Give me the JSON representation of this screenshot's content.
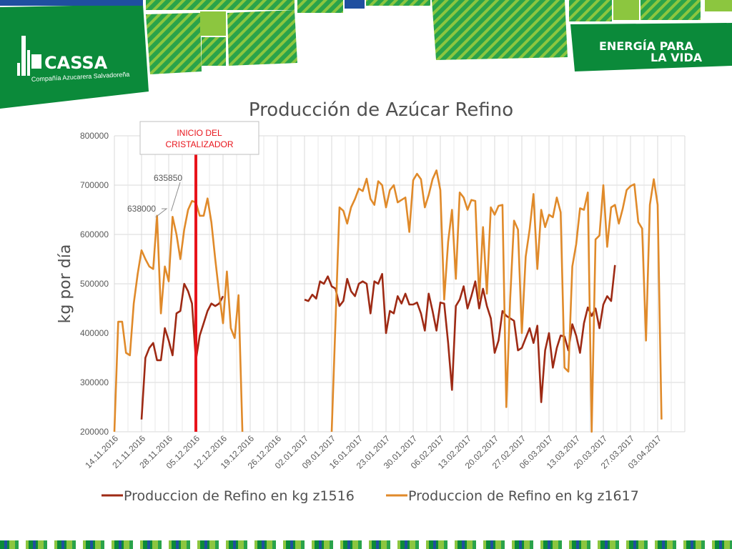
{
  "brand": {
    "logo_name": "CASSA",
    "logo_subtitle": "Compañía Azucarera Salvadoreña",
    "slogan_line1": "ENERGÍA PARA",
    "slogan_line2": "LA VIDA"
  },
  "colors": {
    "green_dark": "#0b8a3a",
    "green_light": "#8cc63f",
    "blue": "#1f4fa0",
    "series_z1516": "#9e2a14",
    "series_z1617": "#e08a2a",
    "marker_line": "#e8141b"
  },
  "annotations": {
    "marker_label_line1": "INICIO DEL",
    "marker_label_line2": "CRISTALIZADOR",
    "callout_1": "635850",
    "callout_2": "638000"
  },
  "chart_data": {
    "type": "line",
    "title": "Producción de Azúcar Refino",
    "ylabel": "kg por día",
    "xlabel": "",
    "ylim": [
      200000,
      800000
    ],
    "yticks": [
      200000,
      300000,
      400000,
      500000,
      600000,
      700000,
      800000
    ],
    "x_range": [
      "2016-11-14",
      "2017-04-10"
    ],
    "x_tick_labels": [
      "14.11.2016",
      "21.11.2016",
      "28.11.2016",
      "05.12.2016",
      "12.12.2016",
      "19.12.2016",
      "26.12.2016",
      "02.01.2017",
      "09.01.2017",
      "16.01.2017",
      "23.01.2017",
      "30.01.2017",
      "06.02.2017",
      "13.02.2017",
      "20.02.2017",
      "27.02.2017",
      "06.03.2017",
      "13.03.2017",
      "20.03.2017",
      "27.03.2017",
      "03.04.2017"
    ],
    "marker_date": "2016-12-05",
    "grid": true,
    "legend": "bottom",
    "series": [
      {
        "name": "Produccion de Refino en kg z1516",
        "color": "#9e2a14",
        "segments": [
          [
            [
              "2016-11-21",
              225000
            ],
            [
              "2016-11-22",
              350000
            ],
            [
              "2016-11-23",
              370000
            ],
            [
              "2016-11-24",
              380000
            ],
            [
              "2016-11-25",
              345000
            ],
            [
              "2016-11-26",
              345000
            ],
            [
              "2016-11-27",
              410000
            ],
            [
              "2016-11-28",
              385000
            ],
            [
              "2016-11-29",
              355000
            ],
            [
              "2016-11-30",
              440000
            ],
            [
              "2016-12-01",
              445000
            ],
            [
              "2016-12-02",
              500000
            ],
            [
              "2016-12-03",
              485000
            ],
            [
              "2016-12-04",
              460000
            ],
            [
              "2016-12-05",
              345000
            ],
            [
              "2016-12-06",
              395000
            ],
            [
              "2016-12-07",
              420000
            ],
            [
              "2016-12-08",
              445000
            ],
            [
              "2016-12-09",
              460000
            ],
            [
              "2016-12-10",
              455000
            ],
            [
              "2016-12-11",
              460000
            ],
            [
              "2016-12-12",
              475000
            ]
          ],
          [
            [
              "2017-01-02",
              468000
            ],
            [
              "2017-01-03",
              465000
            ],
            [
              "2017-01-04",
              478000
            ],
            [
              "2017-01-05",
              470000
            ],
            [
              "2017-01-06",
              505000
            ],
            [
              "2017-01-07",
              500000
            ],
            [
              "2017-01-08",
              515000
            ],
            [
              "2017-01-09",
              495000
            ],
            [
              "2017-01-10",
              490000
            ],
            [
              "2017-01-11",
              455000
            ],
            [
              "2017-01-12",
              465000
            ],
            [
              "2017-01-13",
              510000
            ],
            [
              "2017-01-14",
              485000
            ],
            [
              "2017-01-15",
              475000
            ],
            [
              "2017-01-16",
              500000
            ],
            [
              "2017-01-17",
              505000
            ],
            [
              "2017-01-18",
              500000
            ],
            [
              "2017-01-19",
              440000
            ],
            [
              "2017-01-20",
              505000
            ],
            [
              "2017-01-21",
              500000
            ],
            [
              "2017-01-22",
              520000
            ],
            [
              "2017-01-23",
              400000
            ],
            [
              "2017-01-24",
              445000
            ],
            [
              "2017-01-25",
              440000
            ],
            [
              "2017-01-26",
              475000
            ],
            [
              "2017-01-27",
              460000
            ],
            [
              "2017-01-28",
              480000
            ],
            [
              "2017-01-29",
              458000
            ],
            [
              "2017-01-30",
              458000
            ],
            [
              "2017-01-31",
              462000
            ],
            [
              "2017-02-01",
              440000
            ],
            [
              "2017-02-02",
              405000
            ],
            [
              "2017-02-03",
              480000
            ],
            [
              "2017-02-04",
              445000
            ],
            [
              "2017-02-05",
              405000
            ],
            [
              "2017-02-06",
              462000
            ],
            [
              "2017-02-07",
              460000
            ],
            [
              "2017-02-08",
              380000
            ],
            [
              "2017-02-09",
              285000
            ],
            [
              "2017-02-10",
              455000
            ],
            [
              "2017-02-11",
              468000
            ],
            [
              "2017-02-12",
              495000
            ],
            [
              "2017-02-13",
              450000
            ],
            [
              "2017-02-14",
              475000
            ],
            [
              "2017-02-15",
              505000
            ],
            [
              "2017-02-16",
              450000
            ],
            [
              "2017-02-17",
              490000
            ],
            [
              "2017-02-18",
              455000
            ],
            [
              "2017-02-19",
              430000
            ],
            [
              "2017-02-20",
              360000
            ],
            [
              "2017-02-21",
              385000
            ],
            [
              "2017-02-22",
              445000
            ],
            [
              "2017-02-23",
              435000
            ],
            [
              "2017-02-24",
              430000
            ],
            [
              "2017-02-25",
              425000
            ],
            [
              "2017-02-26",
              365000
            ],
            [
              "2017-02-27",
              370000
            ],
            [
              "2017-02-28",
              390000
            ],
            [
              "2017-03-01",
              410000
            ],
            [
              "2017-03-02",
              380000
            ],
            [
              "2017-03-03",
              415000
            ],
            [
              "2017-03-04",
              260000
            ],
            [
              "2017-03-05",
              365000
            ],
            [
              "2017-03-06",
              400000
            ],
            [
              "2017-03-07",
              330000
            ],
            [
              "2017-03-08",
              370000
            ],
            [
              "2017-03-09",
              395000
            ],
            [
              "2017-03-10",
              393000
            ],
            [
              "2017-03-11",
              365000
            ],
            [
              "2017-03-12",
              418000
            ],
            [
              "2017-03-13",
              395000
            ],
            [
              "2017-03-14",
              360000
            ],
            [
              "2017-03-15",
              420000
            ],
            [
              "2017-03-16",
              452000
            ],
            [
              "2017-03-17",
              435000
            ],
            [
              "2017-03-18",
              450000
            ],
            [
              "2017-03-19",
              410000
            ],
            [
              "2017-03-20",
              458000
            ],
            [
              "2017-03-21",
              475000
            ],
            [
              "2017-03-22",
              465000
            ],
            [
              "2017-03-23",
              538000
            ]
          ]
        ]
      },
      {
        "name": "Produccion de Refino en kg z1617",
        "color": "#e08a2a",
        "segments": [
          [
            [
              "2016-11-14",
              200000
            ],
            [
              "2016-11-15",
              423000
            ],
            [
              "2016-11-16",
              423000
            ],
            [
              "2016-11-17",
              360000
            ],
            [
              "2016-11-18",
              355000
            ],
            [
              "2016-11-19",
              460000
            ],
            [
              "2016-11-20",
              520000
            ],
            [
              "2016-11-21",
              568000
            ],
            [
              "2016-11-22",
              550000
            ],
            [
              "2016-11-23",
              535000
            ],
            [
              "2016-11-24",
              530000
            ],
            [
              "2016-11-25",
              638000
            ],
            [
              "2016-11-26",
              440000
            ],
            [
              "2016-11-27",
              535000
            ],
            [
              "2016-11-28",
              505000
            ],
            [
              "2016-11-29",
              635850
            ],
            [
              "2016-11-30",
              600000
            ],
            [
              "2016-12-01",
              550000
            ],
            [
              "2016-12-02",
              610000
            ],
            [
              "2016-12-03",
              650000
            ],
            [
              "2016-12-04",
              668000
            ],
            [
              "2016-12-05",
              665000
            ],
            [
              "2016-12-06",
              638000
            ],
            [
              "2016-12-07",
              638000
            ],
            [
              "2016-12-08",
              673000
            ],
            [
              "2016-12-09",
              625000
            ],
            [
              "2016-12-10",
              550000
            ],
            [
              "2016-12-11",
              480000
            ],
            [
              "2016-12-12",
              420000
            ],
            [
              "2016-12-13",
              525000
            ],
            [
              "2016-12-14",
              410000
            ],
            [
              "2016-12-15",
              390000
            ],
            [
              "2016-12-16",
              477000
            ],
            [
              "2016-12-17",
              200000
            ]
          ],
          [
            [
              "2017-01-09",
              200000
            ],
            [
              "2017-01-11",
              655000
            ],
            [
              "2017-01-12",
              648000
            ],
            [
              "2017-01-13",
              622000
            ],
            [
              "2017-01-14",
              655000
            ],
            [
              "2017-01-15",
              672000
            ],
            [
              "2017-01-16",
              693000
            ],
            [
              "2017-01-17",
              688000
            ],
            [
              "2017-01-18",
              713000
            ],
            [
              "2017-01-19",
              672000
            ],
            [
              "2017-01-20",
              660000
            ],
            [
              "2017-01-21",
              708000
            ],
            [
              "2017-01-22",
              700000
            ],
            [
              "2017-01-23",
              655000
            ],
            [
              "2017-01-24",
              690000
            ],
            [
              "2017-01-25",
              700000
            ],
            [
              "2017-01-26",
              665000
            ],
            [
              "2017-01-27",
              670000
            ],
            [
              "2017-01-28",
              675000
            ],
            [
              "2017-01-29",
              605000
            ],
            [
              "2017-01-30",
              710000
            ],
            [
              "2017-01-31",
              723000
            ],
            [
              "2017-02-01",
              712000
            ],
            [
              "2017-02-02",
              655000
            ],
            [
              "2017-02-03",
              680000
            ],
            [
              "2017-02-04",
              712000
            ],
            [
              "2017-02-05",
              730000
            ],
            [
              "2017-02-06",
              690000
            ],
            [
              "2017-02-07",
              468000
            ],
            [
              "2017-02-08",
              585000
            ],
            [
              "2017-02-09",
              650000
            ],
            [
              "2017-02-10",
              510000
            ],
            [
              "2017-02-11",
              685000
            ],
            [
              "2017-02-12",
              675000
            ],
            [
              "2017-02-13",
              650000
            ],
            [
              "2017-02-14",
              670000
            ],
            [
              "2017-02-15",
              668000
            ],
            [
              "2017-02-16",
              470000
            ],
            [
              "2017-02-17",
              615000
            ],
            [
              "2017-02-18",
              480000
            ],
            [
              "2017-02-19",
              655000
            ],
            [
              "2017-02-20",
              640000
            ],
            [
              "2017-02-21",
              658000
            ],
            [
              "2017-02-22",
              660000
            ],
            [
              "2017-02-23",
              250000
            ],
            [
              "2017-02-24",
              470000
            ],
            [
              "2017-02-25",
              628000
            ],
            [
              "2017-02-26",
              610000
            ],
            [
              "2017-02-27",
              400000
            ],
            [
              "2017-02-28",
              555000
            ],
            [
              "2017-03-01",
              610000
            ],
            [
              "2017-03-02",
              682000
            ],
            [
              "2017-03-03",
              530000
            ],
            [
              "2017-03-04",
              650000
            ],
            [
              "2017-03-05",
              615000
            ],
            [
              "2017-03-06",
              640000
            ],
            [
              "2017-03-07",
              635000
            ],
            [
              "2017-03-08",
              675000
            ],
            [
              "2017-03-09",
              645000
            ],
            [
              "2017-03-10",
              330000
            ],
            [
              "2017-03-11",
              322000
            ],
            [
              "2017-03-12",
              535000
            ],
            [
              "2017-03-13",
              580000
            ],
            [
              "2017-03-14",
              653000
            ],
            [
              "2017-03-15",
              650000
            ],
            [
              "2017-03-16",
              685000
            ],
            [
              "2017-03-17",
              200000
            ],
            [
              "2017-03-18",
              590000
            ],
            [
              "2017-03-19",
              598000
            ],
            [
              "2017-03-20",
              700000
            ],
            [
              "2017-03-21",
              575000
            ],
            [
              "2017-03-22",
              655000
            ],
            [
              "2017-03-23",
              660000
            ],
            [
              "2017-03-24",
              622000
            ],
            [
              "2017-03-25",
              652000
            ],
            [
              "2017-03-26",
              690000
            ],
            [
              "2017-03-27",
              698000
            ],
            [
              "2017-03-28",
              702000
            ],
            [
              "2017-03-29",
              625000
            ],
            [
              "2017-03-30",
              612000
            ],
            [
              "2017-03-31",
              385000
            ],
            [
              "2017-04-01",
              660000
            ],
            [
              "2017-04-02",
              712000
            ],
            [
              "2017-04-03",
              660000
            ],
            [
              "2017-04-04",
              225000
            ]
          ]
        ]
      }
    ]
  }
}
